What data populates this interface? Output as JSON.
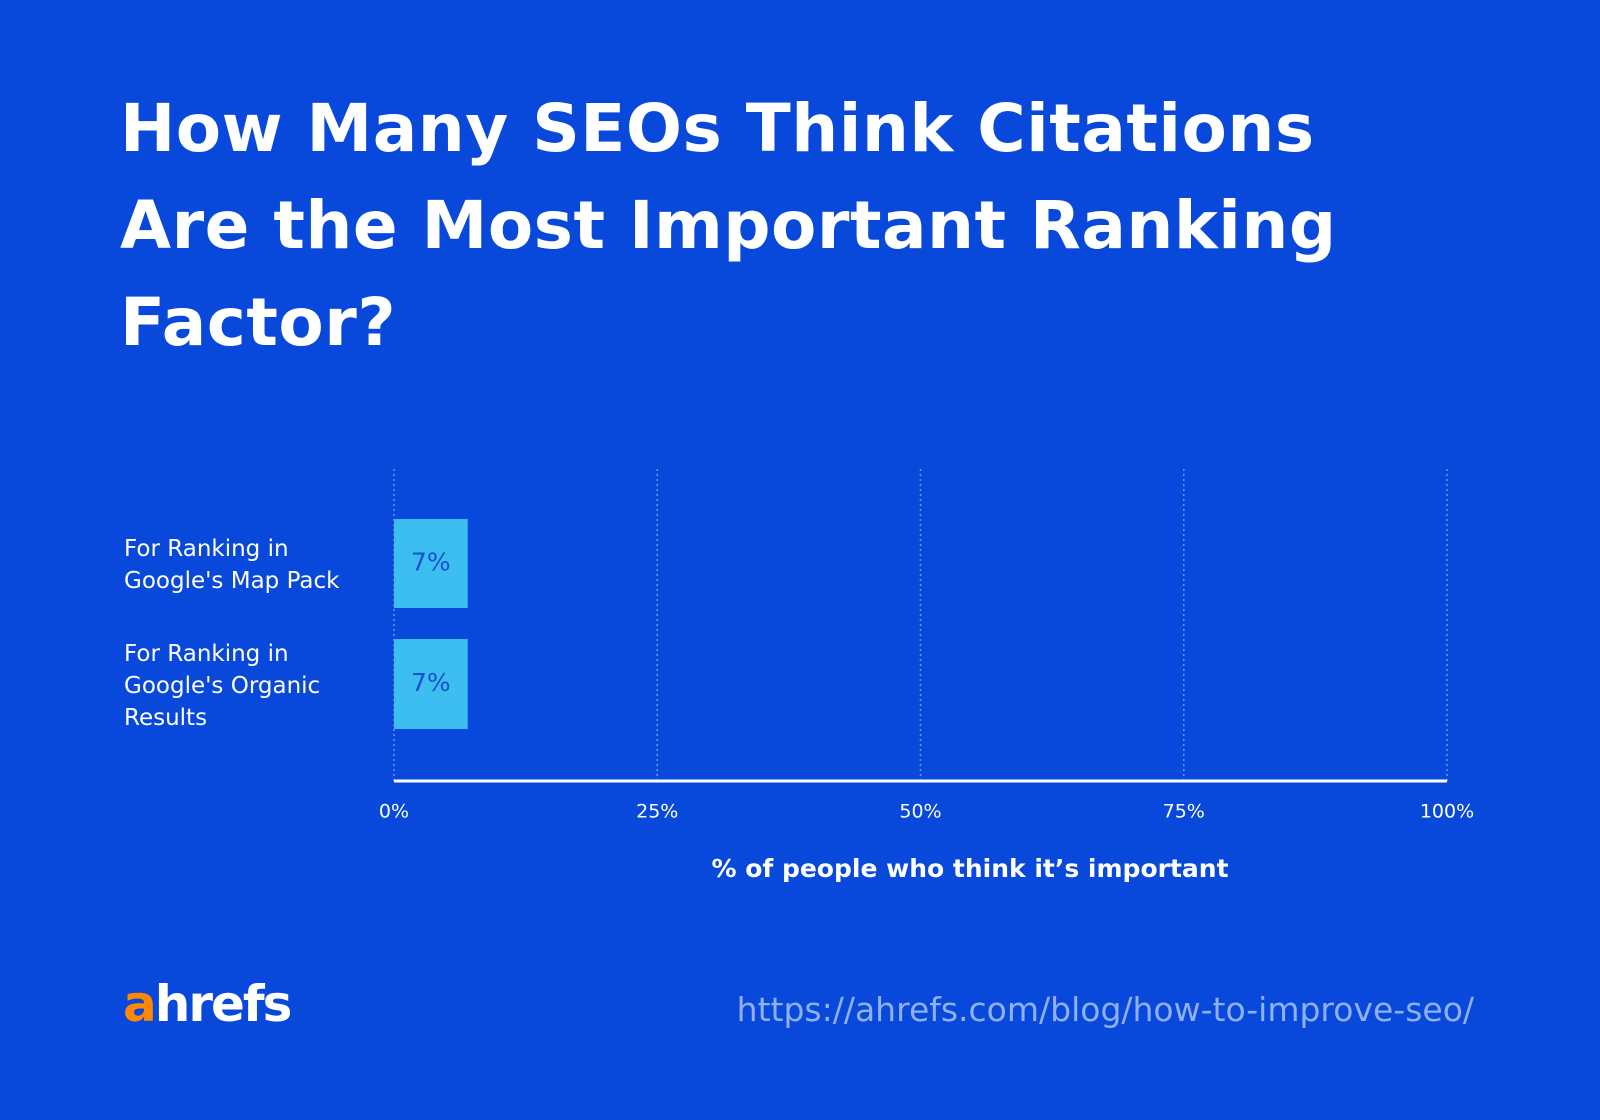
{
  "chart_data": {
    "type": "bar",
    "orientation": "horizontal",
    "title": "How Many SEOs Think Citations Are the Most Important Ranking Factor?",
    "categories": [
      "For Ranking in Google's Map Pack",
      "For Ranking in Google's Organic Results"
    ],
    "values": [
      7,
      7
    ],
    "value_labels": [
      "7%",
      "7%"
    ],
    "color": "#3cbff0",
    "xlim": [
      0,
      100
    ],
    "xticks": [
      {
        "value": 0,
        "label": "0%"
      },
      {
        "value": 25,
        "label": "25%"
      },
      {
        "value": 50,
        "label": "50%"
      },
      {
        "value": 75,
        "label": "75%"
      },
      {
        "value": 100,
        "label": "100%"
      }
    ],
    "x_label": "% of people who think it’s important",
    "grid": true
  },
  "footer": {
    "logo": "ahrefs",
    "url": "https://ahrefs.com/blog/how-to-improve-seo/"
  }
}
